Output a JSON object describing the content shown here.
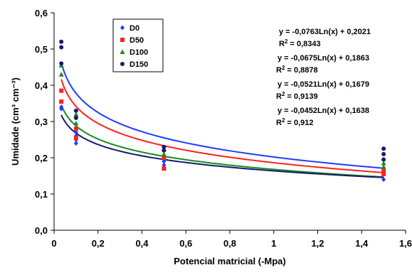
{
  "chart_data": {
    "type": "scatter",
    "xlabel": "Potencial matricial (-Mpa)",
    "ylabel": "Umidade (cm³ cm⁻³)",
    "xlim": [
      0,
      1.6
    ],
    "ylim": [
      0,
      0.6
    ],
    "x_ticks": [
      "0",
      "0,2",
      "0,4",
      "0,6",
      "0,8",
      "1",
      "1,2",
      "1,4",
      "1,6"
    ],
    "y_ticks": [
      "0,0",
      "0,1",
      "0,2",
      "0,3",
      "0,4",
      "0,5",
      "0,6"
    ],
    "grid": false,
    "legend_position": "top-left",
    "series": [
      {
        "name": "D0",
        "color": "#1f3dff",
        "marker": "diamond",
        "points": [
          [
            0.033,
            0.335
          ],
          [
            0.033,
            0.34
          ],
          [
            0.1,
            0.24
          ],
          [
            0.1,
            0.25
          ],
          [
            0.1,
            0.26
          ],
          [
            0.1,
            0.27
          ],
          [
            0.5,
            0.18
          ],
          [
            0.5,
            0.19
          ],
          [
            0.5,
            0.2
          ],
          [
            1.5,
            0.14
          ],
          [
            1.5,
            0.155
          ],
          [
            1.5,
            0.16
          ]
        ],
        "trend": {
          "a": -0.0763,
          "b": 0.2021
        }
      },
      {
        "name": "D50",
        "color": "#ff2020",
        "marker": "square",
        "points": [
          [
            0.033,
            0.355
          ],
          [
            0.033,
            0.385
          ],
          [
            0.1,
            0.255
          ],
          [
            0.1,
            0.28
          ],
          [
            0.5,
            0.17
          ],
          [
            0.5,
            0.2
          ],
          [
            1.5,
            0.155
          ],
          [
            1.5,
            0.165
          ]
        ],
        "trend": {
          "a": -0.0675,
          "b": 0.1863
        }
      },
      {
        "name": "D100",
        "color": "#1a8c1a",
        "marker": "triangle",
        "points": [
          [
            0.033,
            0.43
          ],
          [
            0.033,
            0.455
          ],
          [
            0.1,
            0.295
          ],
          [
            0.1,
            0.32
          ],
          [
            0.5,
            0.21
          ],
          [
            0.5,
            0.225
          ],
          [
            1.5,
            0.175
          ],
          [
            1.5,
            0.185
          ]
        ],
        "trend": {
          "a": -0.0521,
          "b": 0.1679
        }
      },
      {
        "name": "D150",
        "color": "#141a6e",
        "marker": "circle",
        "points": [
          [
            0.033,
            0.46
          ],
          [
            0.033,
            0.505
          ],
          [
            0.033,
            0.52
          ],
          [
            0.1,
            0.31
          ],
          [
            0.1,
            0.33
          ],
          [
            0.5,
            0.22
          ],
          [
            0.5,
            0.23
          ],
          [
            1.5,
            0.195
          ],
          [
            1.5,
            0.21
          ],
          [
            1.5,
            0.225
          ]
        ],
        "trend": {
          "a": -0.0452,
          "b": 0.1638
        }
      }
    ],
    "annotations": [
      {
        "eq": "y = -0,0763Ln(x) + 0,2021",
        "r2": "0,8343"
      },
      {
        "eq": "y = -0,0675Ln(x) + 0,1863",
        "r2": "0,8878"
      },
      {
        "eq": "y = -0,0521Ln(x) + 0,1679",
        "r2": "0,9139"
      },
      {
        "eq": "y = -0,0452Ln(x) + 0,1638",
        "r2": "0,912"
      }
    ]
  }
}
